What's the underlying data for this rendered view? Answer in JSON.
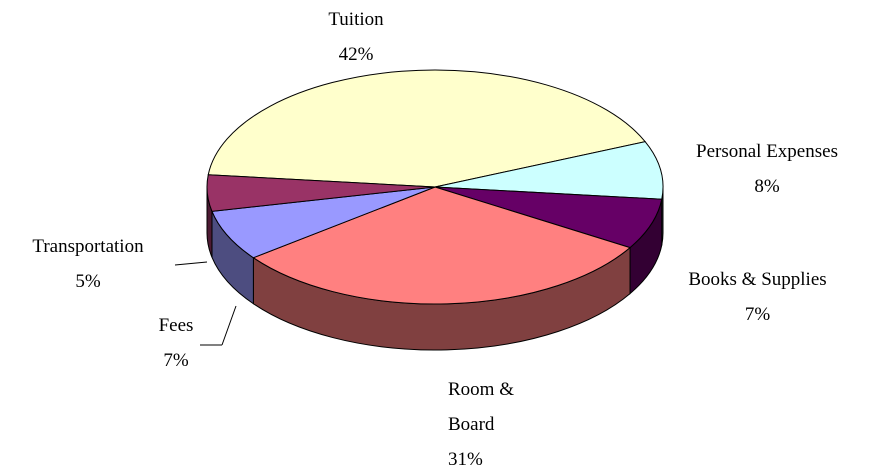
{
  "chart_data": {
    "type": "pie",
    "categories": [
      "Tuition",
      "Personal Expenses",
      "Books & Supplies",
      "Room & Board",
      "Fees",
      "Transportation"
    ],
    "values": [
      42,
      8,
      7,
      31,
      7,
      5
    ],
    "value_labels": [
      "42%",
      "8%",
      "7%",
      "31%",
      "7%",
      "5%"
    ],
    "colors": [
      "#ffffcc",
      "#ccffff",
      "#660066",
      "#ff8080",
      "#9999ff",
      "#993366"
    ],
    "three_d": true
  }
}
